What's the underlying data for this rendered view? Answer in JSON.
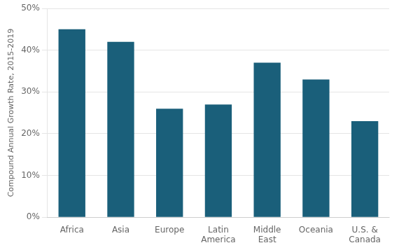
{
  "chart_data": {
    "type": "bar",
    "categories": [
      "Africa",
      "Asia",
      "Europe",
      "Latin\nAmerica",
      "Middle\nEast",
      "Oceania",
      "U.S. &\nCanada"
    ],
    "values": [
      45,
      42,
      26,
      27,
      37,
      33,
      23
    ],
    "color": "#1a5f7a",
    "ylabel": "Compound Annual Growth Rate, 2015-2019",
    "ylim": [
      0,
      50
    ],
    "yticks": [
      {
        "value": 0,
        "label": "0%"
      },
      {
        "value": 10,
        "label": "10%"
      },
      {
        "value": 20,
        "label": "20%"
      },
      {
        "value": 30,
        "label": "30%"
      },
      {
        "value": 40,
        "label": "40%"
      },
      {
        "value": 50,
        "label": "50%"
      }
    ],
    "grid": true
  }
}
